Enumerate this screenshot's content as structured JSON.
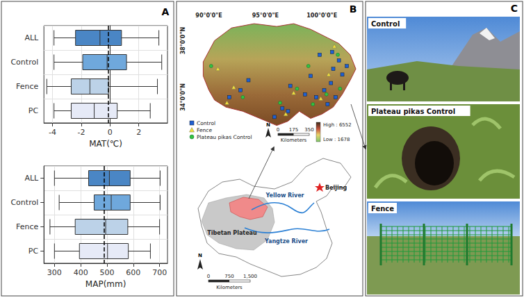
{
  "panel_labels": [
    "A",
    "B",
    "C"
  ],
  "chart_data": [
    {
      "type": "boxplot",
      "orientation": "horizontal",
      "categories": [
        "ALL",
        "Control",
        "Fence",
        "PC"
      ],
      "values": [
        [
          -3.9,
          -2.4,
          -0.7,
          0.8,
          3.4
        ],
        [
          -3.9,
          -1.9,
          -0.2,
          1.15,
          3.6
        ],
        [
          -4.4,
          -2.7,
          -1.4,
          -0.1,
          3.3
        ],
        [
          -3.9,
          -2.7,
          -1.1,
          0.5,
          2.8
        ]
      ],
      "colors": [
        "#4a86c5",
        "#6fa8dc",
        "#bcd2e8",
        "#e6eaf7"
      ],
      "xlabel": "MAT(℃)",
      "xlim": [
        -4.6,
        4.0
      ],
      "xticks": [
        -4,
        -2,
        0,
        2
      ],
      "reference_line": -0.1,
      "grid": true
    },
    {
      "type": "boxplot",
      "orientation": "horizontal",
      "categories": [
        "ALL",
        "Control",
        "Fence",
        "PC"
      ],
      "values": [
        [
          300,
          430,
          509,
          588,
          702
        ],
        [
          318,
          451,
          516,
          588,
          702
        ],
        [
          283,
          379,
          495,
          579,
          700
        ],
        [
          300,
          395,
          502,
          581,
          665
        ]
      ],
      "colors": [
        "#4a86c5",
        "#6fa8dc",
        "#bcd2e8",
        "#e6eaf7"
      ],
      "xlabel": "MAP(mm)",
      "xlim": [
        260,
        730
      ],
      "xticks": [
        300,
        400,
        500,
        600,
        700
      ],
      "reference_line": 490,
      "grid": true
    }
  ],
  "map_panel": {
    "lon_ticks": [
      {
        "value": 90,
        "label": "90°0'0\"E"
      },
      {
        "value": 95,
        "label": "95°0'0\"E"
      },
      {
        "value": 100,
        "label": "100°0'0\"E"
      }
    ],
    "lat_ticks": [
      {
        "value": 38,
        "label": "38°0'0\"N"
      },
      {
        "value": 34,
        "label": "34°0'0\"N"
      }
    ],
    "legend": [
      {
        "name": "Control",
        "color": "#1f5fd1",
        "marker": "square"
      },
      {
        "name": "Fence",
        "color": "#f2e03c",
        "marker": "triangle"
      },
      {
        "name": "Plateau pikas Control",
        "color": "#34c23f",
        "marker": "circle"
      }
    ],
    "sites": {
      "Control": [
        [
          97.2,
          34.8
        ],
        [
          98.5,
          34.2
        ],
        [
          99.5,
          34.0
        ],
        [
          100.2,
          34.5
        ],
        [
          100.8,
          35.0
        ],
        [
          101.2,
          34.0
        ],
        [
          100.5,
          33.5
        ],
        [
          101.8,
          35.6
        ],
        [
          101.5,
          36.6
        ],
        [
          100.9,
          37.2
        ],
        [
          99.8,
          37.0
        ],
        [
          97.0,
          33.0
        ],
        [
          96.5,
          33.2
        ],
        [
          95.8,
          32.6
        ],
        [
          92.8,
          34.5
        ],
        [
          93.5,
          35.2
        ],
        [
          91.8,
          34.0
        ],
        [
          99.0,
          35.5
        ],
        [
          101.0,
          36.0
        ],
        [
          102.2,
          36.2
        ]
      ],
      "Fence": [
        [
          91.6,
          33.6
        ],
        [
          92.2,
          34.7
        ],
        [
          90.8,
          36.0
        ],
        [
          97.5,
          34.3
        ],
        [
          99.9,
          33.9
        ],
        [
          100.6,
          35.6
        ],
        [
          101.1,
          37.6
        ],
        [
          96.8,
          32.8
        ]
      ],
      "Plateau pikas Control": [
        [
          90.2,
          36.2
        ],
        [
          93.0,
          34.0
        ],
        [
          97.8,
          34.6
        ],
        [
          99.2,
          33.5
        ],
        [
          100.4,
          34.2
        ],
        [
          101.6,
          34.6
        ],
        [
          98.8,
          36.2
        ],
        [
          96.3,
          33.6
        ],
        [
          101.4,
          37.0
        ]
      ]
    },
    "north": "N",
    "scale_bar": {
      "ticks": [
        0,
        175,
        350
      ],
      "unit": "Kilometers"
    },
    "elevation": {
      "high": {
        "value": 6552,
        "label": "High : 6552"
      },
      "low": {
        "value": 1678,
        "label": "Low : 1678"
      }
    }
  },
  "inset_map": {
    "places": {
      "capital": "Beijing",
      "plateau": "Tibetan Plateau",
      "river_north": "Yellow River",
      "river_south": "Yangtze River"
    },
    "north": "N",
    "scale_bar": {
      "ticks": [
        0,
        750,
        {
          "value": 1500,
          "label": "1,500"
        }
      ],
      "unit": "Kilometers"
    }
  },
  "photo_panel": {
    "labels": [
      "Control",
      "Plateau pikas Control",
      "Fence"
    ]
  }
}
